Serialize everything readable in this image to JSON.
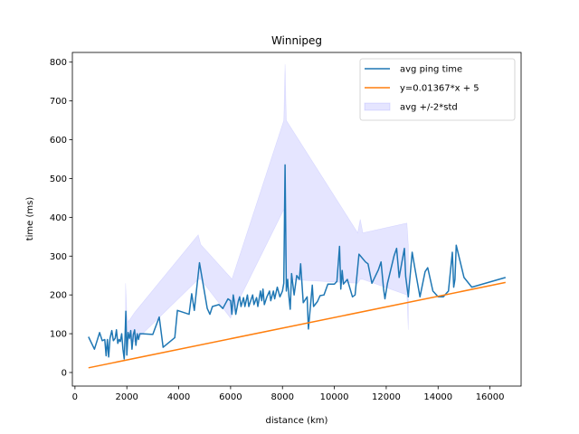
{
  "chart_data": {
    "type": "line",
    "title": "Winnipeg",
    "xlabel": "distance (km)",
    "ylabel": "time (ms)",
    "xlim": [
      -100,
      17200
    ],
    "ylim": [
      -35,
      825
    ],
    "xticks": [
      0,
      2000,
      4000,
      6000,
      8000,
      10000,
      12000,
      14000,
      16000
    ],
    "yticks": [
      0,
      100,
      200,
      300,
      400,
      500,
      600,
      700,
      800
    ],
    "grid": false,
    "legend_position": "top-right",
    "series": [
      {
        "name": "avg ping time",
        "color": "#1f77b4",
        "kind": "line",
        "points": [
          [
            520,
            92
          ],
          [
            750,
            60
          ],
          [
            950,
            103
          ],
          [
            1050,
            82
          ],
          [
            1150,
            85
          ],
          [
            1200,
            43
          ],
          [
            1250,
            85
          ],
          [
            1300,
            40
          ],
          [
            1350,
            88
          ],
          [
            1420,
            108
          ],
          [
            1480,
            82
          ],
          [
            1550,
            88
          ],
          [
            1600,
            110
          ],
          [
            1650,
            75
          ],
          [
            1700,
            85
          ],
          [
            1750,
            80
          ],
          [
            1800,
            100
          ],
          [
            1850,
            60
          ],
          [
            1900,
            35
          ],
          [
            1930,
            90
          ],
          [
            1960,
            158
          ],
          [
            2000,
            45
          ],
          [
            2050,
            103
          ],
          [
            2100,
            88
          ],
          [
            2150,
            108
          ],
          [
            2200,
            60
          ],
          [
            2250,
            98
          ],
          [
            2300,
            110
          ],
          [
            2350,
            70
          ],
          [
            2400,
            100
          ],
          [
            2450,
            85
          ],
          [
            2500,
            100
          ],
          [
            2600,
            100
          ],
          [
            3000,
            98
          ],
          [
            3250,
            143
          ],
          [
            3400,
            65
          ],
          [
            3850,
            90
          ],
          [
            3950,
            160
          ],
          [
            4400,
            150
          ],
          [
            4500,
            203
          ],
          [
            4600,
            160
          ],
          [
            4800,
            283
          ],
          [
            5100,
            165
          ],
          [
            5200,
            150
          ],
          [
            5300,
            170
          ],
          [
            5550,
            175
          ],
          [
            5700,
            165
          ],
          [
            5900,
            190
          ],
          [
            6000,
            185
          ],
          [
            6050,
            150
          ],
          [
            6100,
            200
          ],
          [
            6150,
            180
          ],
          [
            6200,
            150
          ],
          [
            6300,
            185
          ],
          [
            6350,
            195
          ],
          [
            6400,
            170
          ],
          [
            6500,
            193
          ],
          [
            6550,
            170
          ],
          [
            6650,
            200
          ],
          [
            6700,
            170
          ],
          [
            6800,
            190
          ],
          [
            6850,
            200
          ],
          [
            6900,
            175
          ],
          [
            7000,
            193
          ],
          [
            7050,
            170
          ],
          [
            7150,
            210
          ],
          [
            7200,
            185
          ],
          [
            7250,
            215
          ],
          [
            7300,
            175
          ],
          [
            7400,
            195
          ],
          [
            7500,
            210
          ],
          [
            7550,
            185
          ],
          [
            7650,
            210
          ],
          [
            7700,
            190
          ],
          [
            7800,
            220
          ],
          [
            7900,
            195
          ],
          [
            8000,
            210
          ],
          [
            8050,
            230
          ],
          [
            8100,
            535
          ],
          [
            8150,
            210
          ],
          [
            8200,
            240
          ],
          [
            8250,
            195
          ],
          [
            8300,
            163
          ],
          [
            8350,
            255
          ],
          [
            8450,
            200
          ],
          [
            8550,
            250
          ],
          [
            8650,
            240
          ],
          [
            8700,
            280
          ],
          [
            8800,
            180
          ],
          [
            8950,
            195
          ],
          [
            9000,
            112
          ],
          [
            9150,
            225
          ],
          [
            9200,
            170
          ],
          [
            9350,
            183
          ],
          [
            9450,
            198
          ],
          [
            9600,
            200
          ],
          [
            9750,
            228
          ],
          [
            10000,
            228
          ],
          [
            10100,
            235
          ],
          [
            10200,
            325
          ],
          [
            10250,
            215
          ],
          [
            10300,
            263
          ],
          [
            10350,
            228
          ],
          [
            10500,
            240
          ],
          [
            10700,
            195
          ],
          [
            10800,
            200
          ],
          [
            10950,
            305
          ],
          [
            11200,
            285
          ],
          [
            11300,
            280
          ],
          [
            11450,
            230
          ],
          [
            11700,
            265
          ],
          [
            11800,
            285
          ],
          [
            11900,
            215
          ],
          [
            11950,
            190
          ],
          [
            12050,
            230
          ],
          [
            12300,
            300
          ],
          [
            12400,
            320
          ],
          [
            12500,
            245
          ],
          [
            12600,
            283
          ],
          [
            12700,
            320
          ],
          [
            12750,
            248
          ],
          [
            12850,
            195
          ],
          [
            13000,
            310
          ],
          [
            13100,
            270
          ],
          [
            13300,
            195
          ],
          [
            13500,
            260
          ],
          [
            13600,
            270
          ],
          [
            13800,
            210
          ],
          [
            14000,
            195
          ],
          [
            14200,
            195
          ],
          [
            14400,
            210
          ],
          [
            14550,
            310
          ],
          [
            14600,
            220
          ],
          [
            14650,
            240
          ],
          [
            14700,
            328
          ],
          [
            14800,
            300
          ],
          [
            15000,
            245
          ],
          [
            15300,
            220
          ],
          [
            16600,
            245
          ]
        ]
      },
      {
        "name": "y=0.01367*x + 5",
        "color": "#ff7f0e",
        "kind": "line",
        "points": [
          [
            520,
            12.1
          ],
          [
            16600,
            232
          ]
        ]
      },
      {
        "name": "avg +/-2*std",
        "color": "#0000ff",
        "kind": "band",
        "band_points": [
          [
            1950,
            85,
            230
          ],
          [
            2000,
            60,
            150
          ],
          [
            2050,
            85,
            130
          ],
          [
            2300,
            80,
            155
          ],
          [
            4750,
            240,
            355
          ],
          [
            4850,
            240,
            330
          ],
          [
            6000,
            140,
            245
          ],
          [
            6050,
            150,
            240
          ],
          [
            8050,
            420,
            650
          ],
          [
            8100,
            310,
            795
          ],
          [
            8150,
            240,
            650
          ],
          [
            10900,
            230,
            360
          ],
          [
            11000,
            240,
            395
          ],
          [
            11100,
            240,
            360
          ],
          [
            12800,
            200,
            385
          ],
          [
            12850,
            110,
            330
          ]
        ]
      }
    ]
  }
}
